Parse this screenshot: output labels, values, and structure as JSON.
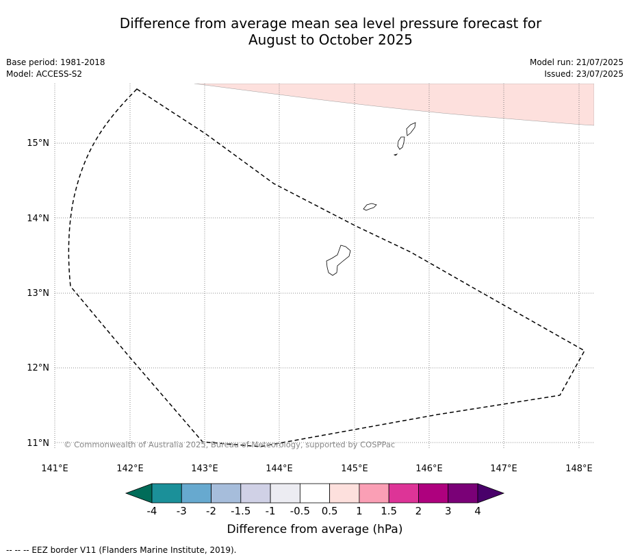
{
  "title": {
    "line1": "Difference from average mean sea level pressure forecast for",
    "line2": "August to October 2025"
  },
  "meta": {
    "base_period": "Base period: 1981-2018",
    "model": "Model: ACCESS-S2",
    "model_run": "Model run: 21/07/2025",
    "issued": "Issued: 23/07/2025"
  },
  "map": {
    "lon_labels": [
      "141°E",
      "142°E",
      "143°E",
      "144°E",
      "145°E",
      "146°E",
      "147°E",
      "148°E"
    ],
    "lat_labels": [
      "15°N",
      "14°N",
      "13°N",
      "12°N",
      "11°N"
    ],
    "copyright": "© Commonwealth of Australia 2025, Bureau of Meteorology, supported by COSPPac",
    "anomaly_band_color": "#fde0dd",
    "eez_style": "dashed"
  },
  "colorbar": {
    "label": "Difference from average (hPa)",
    "tick_labels": [
      "-4",
      "-3",
      "-2",
      "-1.5",
      "-1",
      "-0.5",
      "0.5",
      "1",
      "1.5",
      "2",
      "3",
      "4"
    ],
    "under_color": "#016c59",
    "over_color": "#49006a",
    "colors": [
      "#1b9099",
      "#67a9cf",
      "#a6bddb",
      "#d0d1e6",
      "#ececf2",
      "#ffffff",
      "#fde0dd",
      "#fa9fb5",
      "#dd3497",
      "#ae017e",
      "#7a0177"
    ]
  },
  "footer": {
    "eez_legend": "--  --  -- EEZ border V11 (Flanders Marine Institute, 2019)."
  }
}
